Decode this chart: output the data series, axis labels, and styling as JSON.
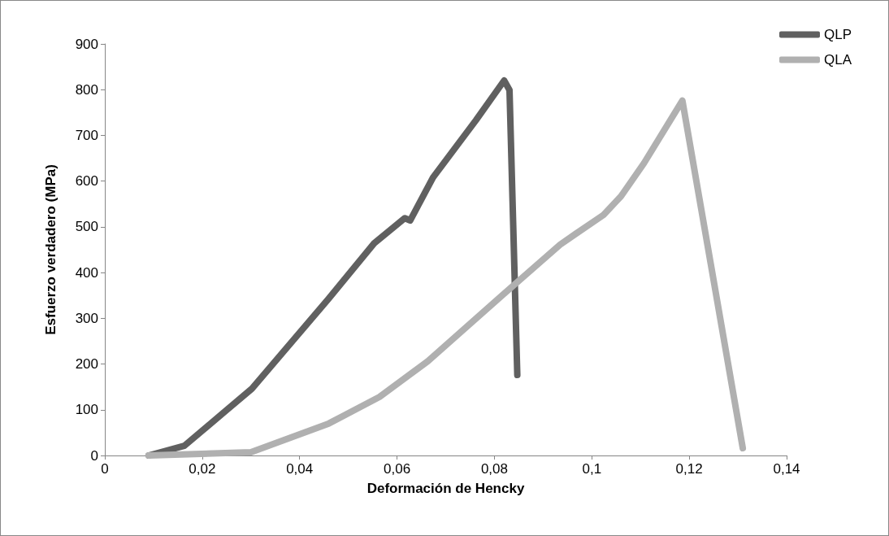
{
  "chart_data": {
    "type": "line",
    "xlabel": "Deformación de Hencky",
    "ylabel": "Esfuerzo verdadero (MPa)",
    "xlim": [
      0,
      0.14
    ],
    "xticks": [
      0,
      {
        "value": 0.02,
        "label": "0,02"
      },
      {
        "value": 0.04,
        "label": "0,04"
      },
      {
        "value": 0.06,
        "label": "0,06"
      },
      {
        "value": 0.08,
        "label": "0,08"
      },
      {
        "value": 0.1,
        "label": "0,1"
      },
      {
        "value": 0.12,
        "label": "0,12"
      },
      {
        "value": 0.14,
        "label": "0,14"
      }
    ],
    "ylim": [
      0,
      900
    ],
    "yticks": [
      0,
      100,
      200,
      300,
      400,
      500,
      600,
      700,
      800,
      900
    ],
    "grid": false,
    "legend": "top right",
    "marker": "none",
    "line_style": "solid",
    "series": [
      {
        "name": "QLP",
        "color": "#606060",
        "x": [
          0.009,
          0.0163,
          0.0302,
          0.0459,
          0.0553,
          0.0616,
          0.0627,
          0.0674,
          0.0762,
          0.082,
          0.0831,
          0.0847
        ],
        "values": [
          0,
          21,
          146,
          342,
          464,
          519,
          514,
          608,
          733,
          820,
          799,
          176
        ]
      },
      {
        "name": "QLA",
        "color": "#b0b0b0",
        "x": [
          0.009,
          0.03,
          0.046,
          0.0564,
          0.0663,
          0.082,
          0.0935,
          0.0966,
          0.1024,
          0.106,
          0.1107,
          0.1186,
          0.131
        ],
        "values": [
          0,
          7,
          70,
          128,
          206,
          354,
          461,
          484,
          526,
          567,
          639,
          776,
          16
        ]
      }
    ]
  }
}
